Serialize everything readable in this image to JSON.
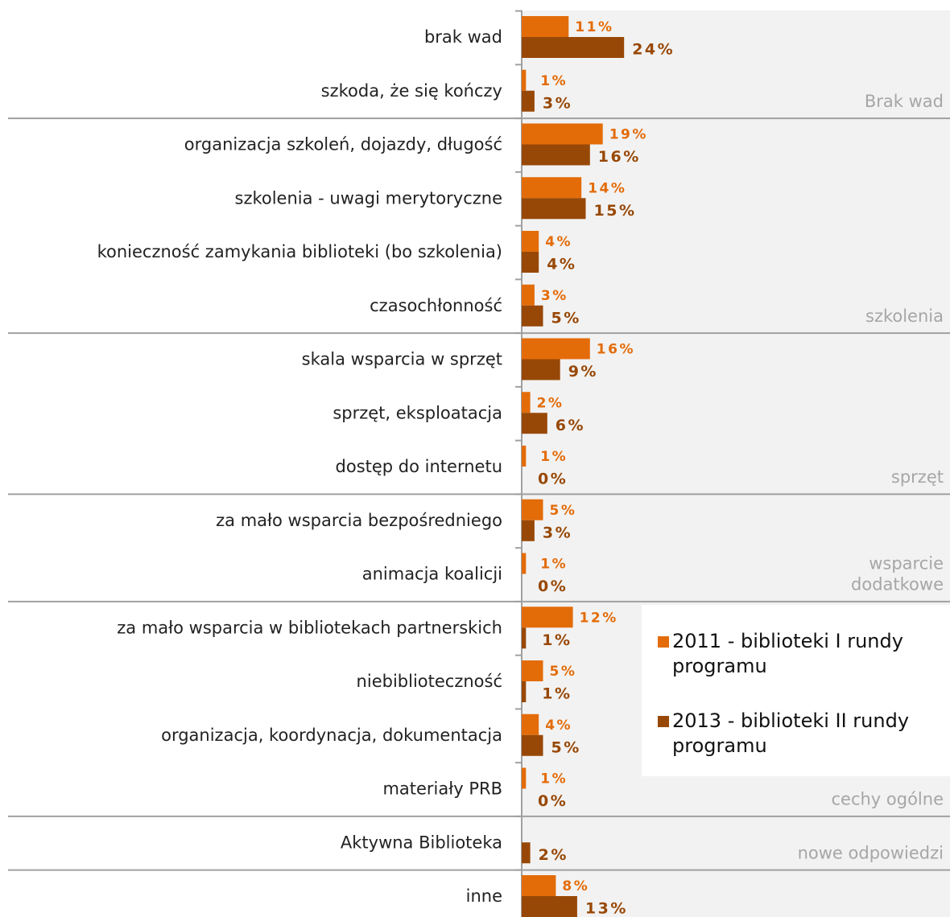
{
  "chart_data": {
    "type": "bar",
    "orientation": "horizontal",
    "categories": [
      "brak wad",
      "szkoda, że się kończy",
      "organizacja szkoleń, dojazdy, długość",
      "szkolenia - uwagi merytoryczne",
      "konieczność zamykania biblioteki (bo szkolenia)",
      "czasochłonność",
      "skala wsparcia w sprzęt",
      "sprzęt, eksploatacja",
      "dostęp do internetu",
      "za mało wsparcia bezpośredniego",
      "animacja koalicji",
      "za mało wsparcia w bibliotekach partnerskich",
      "niebiblioteczność",
      "organizacja, koordynacja, dokumentacja",
      "materiały PRB",
      "Aktywna Biblioteka",
      "inne"
    ],
    "series": [
      {
        "name": "2011 - biblioteki I rundy programu",
        "color": "#e36c09",
        "values": [
          11,
          1,
          19,
          14,
          4,
          3,
          16,
          2,
          1,
          5,
          1,
          12,
          5,
          4,
          1,
          null,
          8
        ],
        "value_labels": [
          "11%",
          "1%",
          "19%",
          "14%",
          "4%",
          "3%",
          "16%",
          "2%",
          "1%",
          "5%",
          "1%",
          "12%",
          "5%",
          "4%",
          "1%",
          null,
          "8%"
        ]
      },
      {
        "name": "2013 - biblioteki II rundy programu",
        "color": "#984806",
        "values": [
          24,
          3,
          16,
          15,
          4,
          5,
          9,
          6,
          0,
          3,
          0,
          1,
          1,
          5,
          0,
          2,
          13
        ],
        "value_labels": [
          "24%",
          "3%",
          "16%",
          "15%",
          "4%",
          "5%",
          "9%",
          "6%",
          "0%",
          "3%",
          "0%",
          "1%",
          "1%",
          "5%",
          "0%",
          "2%",
          "13%"
        ]
      }
    ],
    "groups": [
      {
        "label": [
          "Brak wad"
        ],
        "first": 0,
        "last": 1
      },
      {
        "label": [
          "szkolenia"
        ],
        "first": 2,
        "last": 5
      },
      {
        "label": [
          "sprzęt"
        ],
        "first": 6,
        "last": 8
      },
      {
        "label": [
          "wsparcie",
          "dodatkowe"
        ],
        "first": 9,
        "last": 10
      },
      {
        "label": [
          "cechy ogólne"
        ],
        "first": 11,
        "last": 14
      },
      {
        "label": [
          "nowe odpowiedzi"
        ],
        "first": 15,
        "last": 15
      }
    ],
    "xlim": [
      0,
      100
    ],
    "legend": "right"
  }
}
